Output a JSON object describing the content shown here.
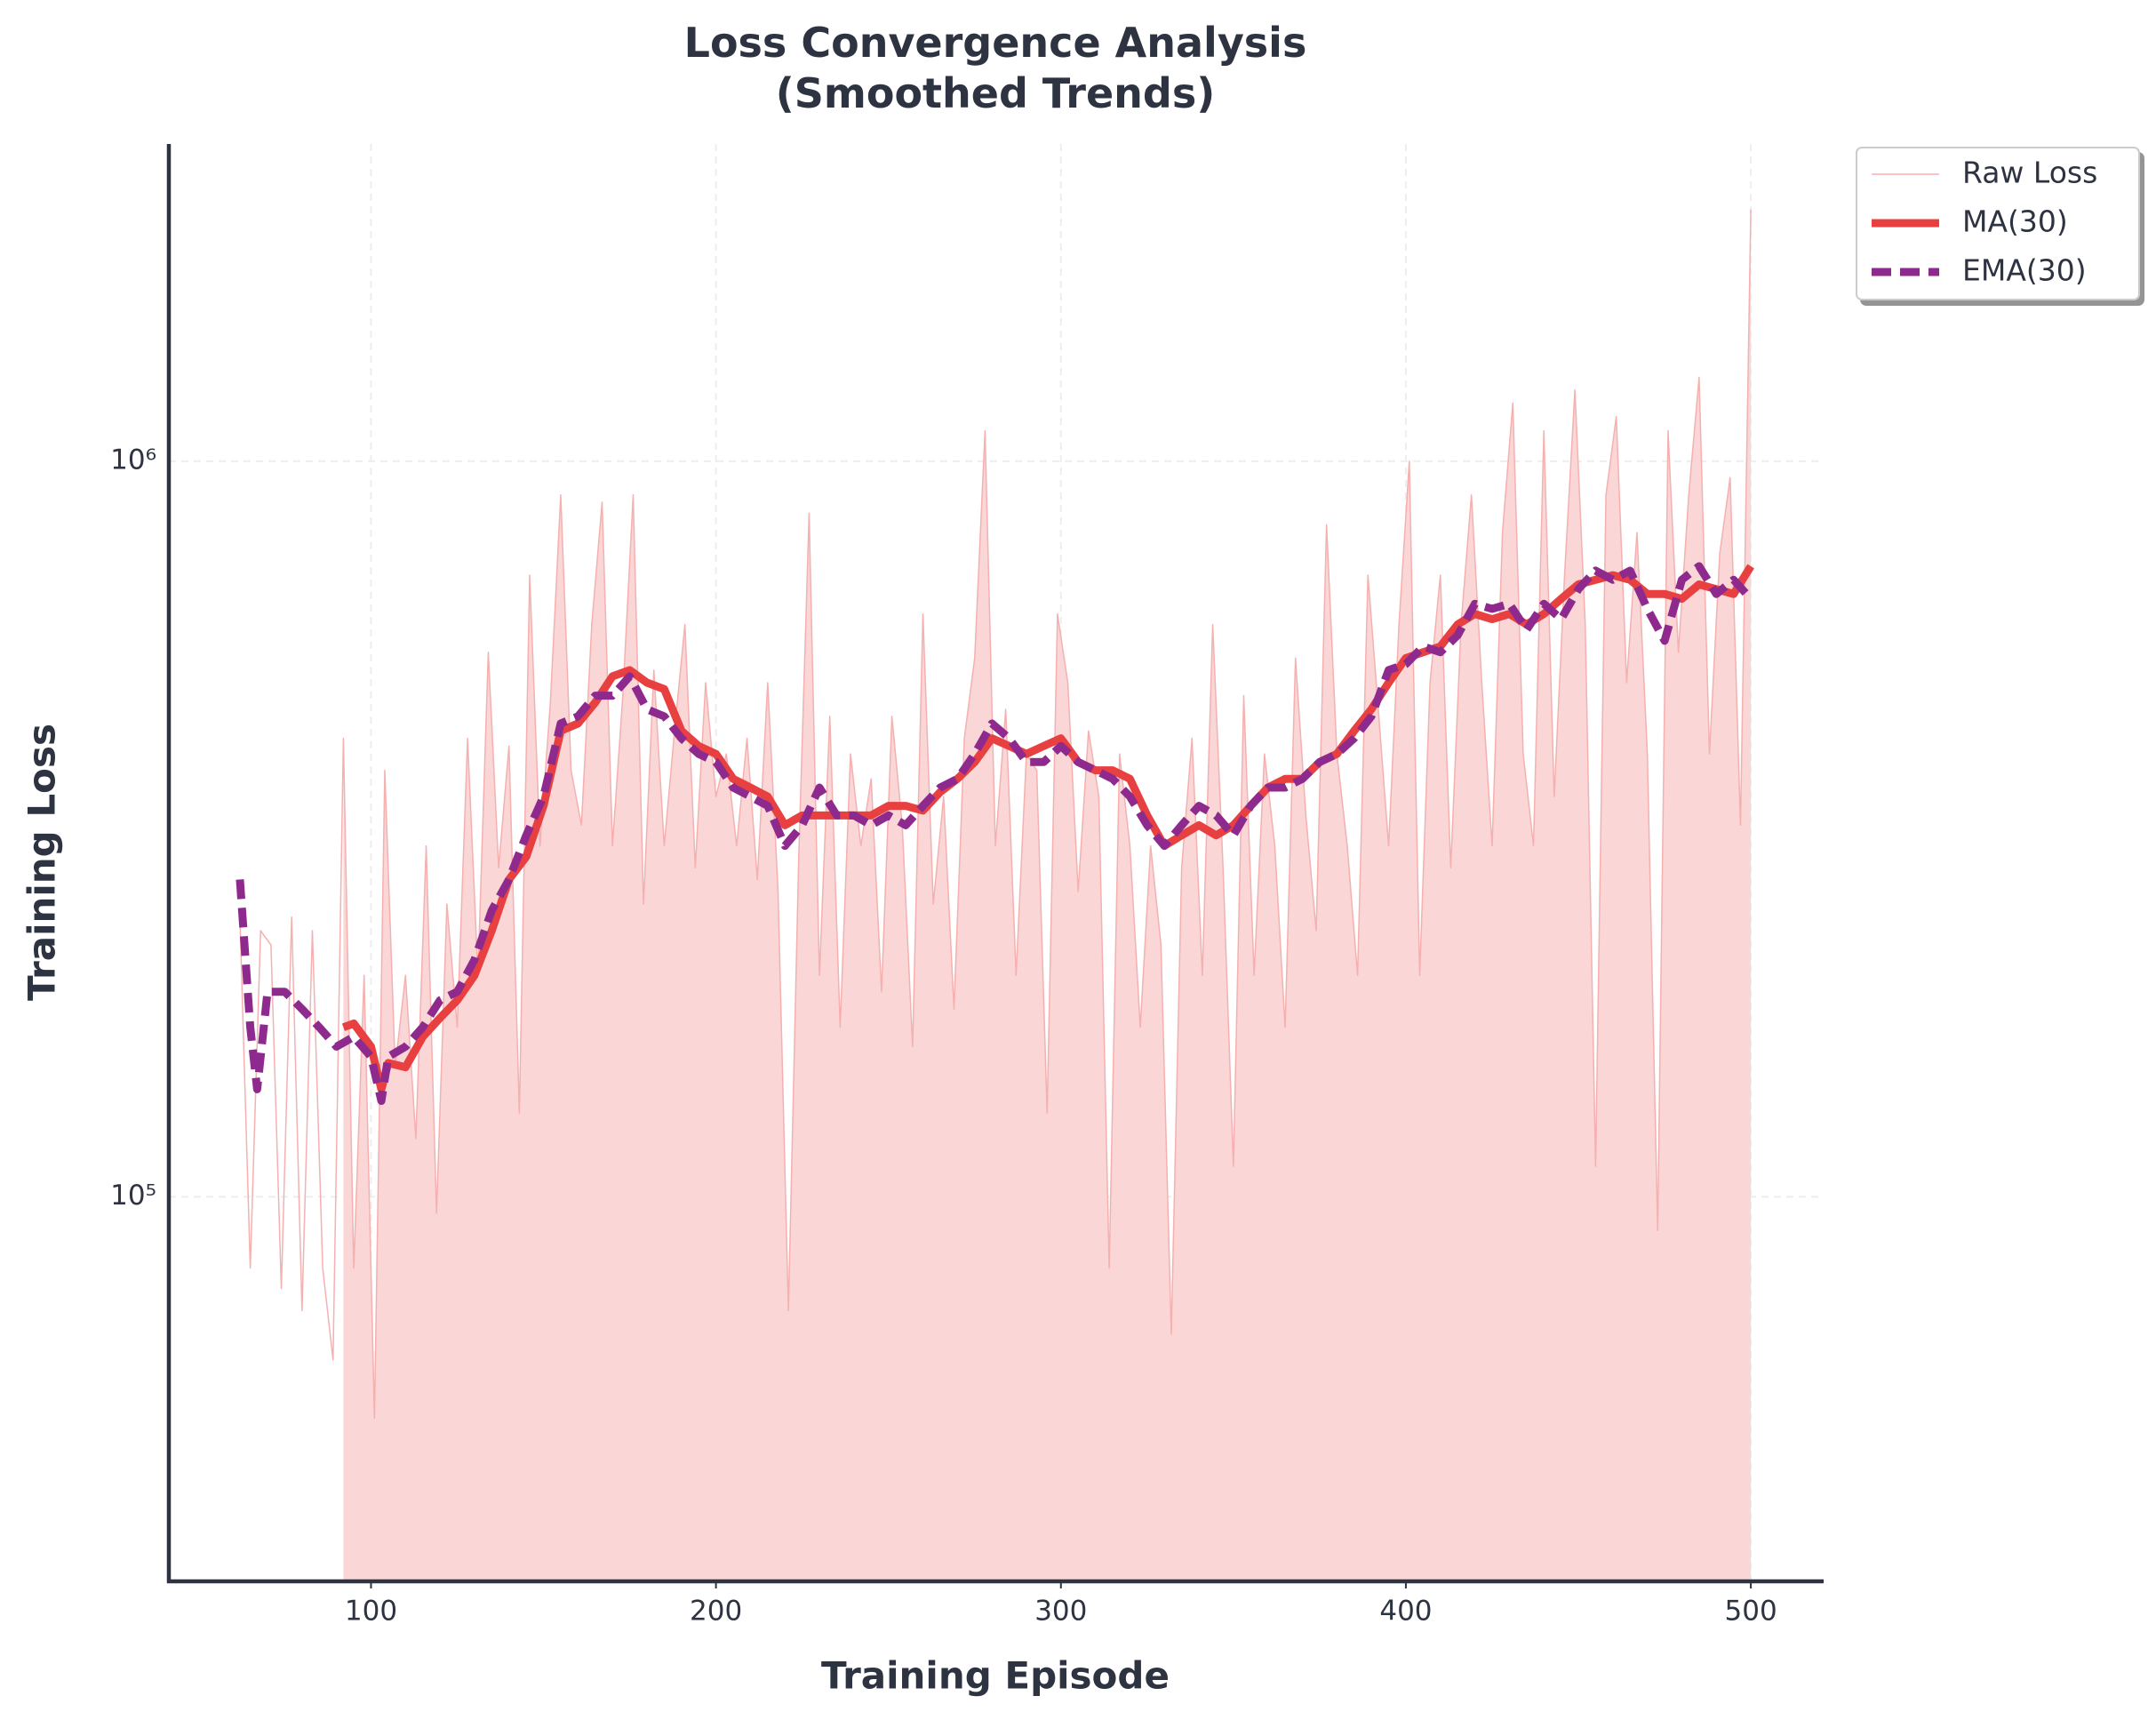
{
  "chart_data": {
    "type": "line",
    "title": "Loss Convergence Analysis\n(Smoothed Trends)",
    "xlabel": "Training Episode",
    "ylabel": "Training Loss",
    "xlim": [
      41.4,
      521.1
    ],
    "xticks": [
      100,
      200,
      300,
      400,
      500
    ],
    "ylim": [
      30000,
      2700000
    ],
    "yscale": "log",
    "yticks": [
      {
        "value": 100000,
        "label": "10⁵"
      },
      {
        "value": 1000000,
        "label": "10⁶"
      }
    ],
    "grid": true,
    "legend": "upper right outside",
    "series": [
      {
        "name": "Raw Loss",
        "color": "#f5b0b0",
        "linestyle": "solid",
        "linewidth": 1.5,
        "fill": "#fad6d6",
        "x": [
          62,
          65,
          68,
          71,
          74,
          77,
          80,
          83,
          86,
          89,
          92,
          95,
          98,
          101,
          104,
          107,
          110,
          113,
          116,
          119,
          122,
          125,
          128,
          131,
          134,
          137,
          140,
          143,
          146,
          149,
          152,
          155,
          158,
          161,
          164,
          167,
          170,
          173,
          176,
          179,
          182,
          185,
          188,
          191,
          194,
          197,
          200,
          203,
          206,
          209,
          212,
          215,
          218,
          221,
          224,
          227,
          230,
          233,
          236,
          239,
          242,
          245,
          248,
          251,
          254,
          257,
          260,
          263,
          266,
          269,
          272,
          275,
          278,
          281,
          284,
          287,
          290,
          293,
          296,
          299,
          302,
          305,
          308,
          311,
          314,
          317,
          320,
          323,
          326,
          329,
          332,
          335,
          338,
          341,
          344,
          347,
          350,
          353,
          356,
          359,
          362,
          365,
          368,
          371,
          374,
          377,
          380,
          383,
          386,
          389,
          392,
          395,
          398,
          401,
          404,
          407,
          410,
          413,
          416,
          419,
          422,
          425,
          428,
          431,
          434,
          437,
          440,
          443,
          446,
          449,
          452,
          455,
          458,
          461,
          464,
          467,
          470,
          473,
          476,
          479,
          482,
          485,
          488,
          491,
          494,
          497,
          500
        ],
        "values": [
          240000,
          80000,
          230000,
          220000,
          75000,
          240000,
          70000,
          230000,
          80000,
          60000,
          420000,
          80000,
          200000,
          50000,
          380000,
          150000,
          200000,
          120000,
          300000,
          95000,
          250000,
          170000,
          420000,
          200000,
          550000,
          280000,
          410000,
          130000,
          700000,
          300000,
          470000,
          900000,
          380000,
          320000,
          600000,
          880000,
          300000,
          480000,
          900000,
          250000,
          520000,
          300000,
          430000,
          600000,
          280000,
          500000,
          350000,
          400000,
          300000,
          420000,
          270000,
          500000,
          260000,
          70000,
          290000,
          850000,
          200000,
          450000,
          170000,
          400000,
          300000,
          370000,
          190000,
          450000,
          320000,
          160000,
          620000,
          250000,
          350000,
          180000,
          420000,
          540000,
          1100000,
          300000,
          460000,
          200000,
          400000,
          380000,
          130000,
          620000,
          500000,
          260000,
          430000,
          350000,
          80000,
          400000,
          300000,
          170000,
          300000,
          220000,
          65000,
          280000,
          420000,
          200000,
          600000,
          280000,
          110000,
          480000,
          200000,
          400000,
          300000,
          170000,
          540000,
          330000,
          230000,
          820000,
          400000,
          300000,
          200000,
          700000,
          460000,
          300000,
          600000,
          1000000,
          200000,
          500000,
          700000,
          280000,
          600000,
          900000,
          500000,
          300000,
          800000,
          1200000,
          400000,
          300000,
          1100000,
          350000,
          700000,
          1250000,
          600000,
          110000,
          900000,
          1150000,
          500000,
          800000,
          400000,
          90000,
          1100000,
          550000,
          900000,
          1300000,
          400000,
          750000,
          950000,
          320000,
          2200000
        ]
      },
      {
        "name": "MA(30)",
        "color": "#e84040",
        "linestyle": "solid",
        "linewidth": 9,
        "x": [
          92,
          95,
          100,
          103,
          105,
          110,
          115,
          120,
          125,
          130,
          135,
          140,
          145,
          150,
          155,
          160,
          165,
          170,
          175,
          180,
          185,
          190,
          195,
          200,
          205,
          210,
          215,
          220,
          225,
          230,
          235,
          240,
          245,
          250,
          255,
          260,
          265,
          270,
          275,
          280,
          285,
          290,
          295,
          300,
          305,
          310,
          315,
          320,
          325,
          330,
          335,
          340,
          345,
          350,
          355,
          360,
          365,
          370,
          375,
          380,
          385,
          390,
          395,
          400,
          405,
          410,
          415,
          420,
          425,
          430,
          435,
          440,
          445,
          450,
          455,
          460,
          465,
          470,
          475,
          480,
          485,
          490,
          495,
          500
        ],
        "values": [
          170000,
          172000,
          160000,
          140000,
          152000,
          150000,
          165000,
          175000,
          185000,
          200000,
          230000,
          270000,
          290000,
          340000,
          430000,
          440000,
          470000,
          510000,
          520000,
          500000,
          490000,
          430000,
          410000,
          400000,
          370000,
          360000,
          350000,
          320000,
          330000,
          330000,
          330000,
          330000,
          330000,
          340000,
          340000,
          335000,
          355000,
          370000,
          390000,
          420000,
          410000,
          400000,
          410000,
          420000,
          390000,
          380000,
          380000,
          370000,
          330000,
          300000,
          310000,
          320000,
          310000,
          320000,
          340000,
          360000,
          370000,
          370000,
          390000,
          400000,
          430000,
          460000,
          500000,
          540000,
          550000,
          560000,
          600000,
          620000,
          610000,
          620000,
          600000,
          620000,
          650000,
          680000,
          690000,
          700000,
          690000,
          660000,
          660000,
          650000,
          680000,
          670000,
          660000,
          720000
        ]
      },
      {
        "name": "EMA(30)",
        "color": "#8e2a8e",
        "linestyle": "dashed",
        "linewidth": 9,
        "x": [
          62,
          65,
          67,
          70,
          75,
          80,
          85,
          90,
          95,
          100,
          103,
          105,
          110,
          115,
          120,
          125,
          130,
          135,
          140,
          145,
          150,
          155,
          160,
          165,
          170,
          175,
          180,
          185,
          190,
          195,
          200,
          205,
          210,
          215,
          220,
          225,
          230,
          235,
          240,
          245,
          250,
          255,
          260,
          265,
          270,
          275,
          280,
          285,
          290,
          295,
          300,
          305,
          310,
          315,
          320,
          325,
          330,
          335,
          340,
          345,
          350,
          355,
          360,
          365,
          370,
          375,
          380,
          385,
          390,
          395,
          400,
          405,
          410,
          415,
          420,
          425,
          430,
          435,
          440,
          445,
          450,
          455,
          460,
          465,
          470,
          475,
          480,
          485,
          490,
          495,
          500
        ],
        "values": [
          270000,
          170000,
          140000,
          190000,
          190000,
          180000,
          170000,
          160000,
          165000,
          155000,
          135000,
          155000,
          160000,
          170000,
          185000,
          190000,
          210000,
          245000,
          270000,
          310000,
          350000,
          440000,
          450000,
          480000,
          480000,
          510000,
          460000,
          450000,
          420000,
          400000,
          390000,
          360000,
          350000,
          340000,
          300000,
          320000,
          360000,
          330000,
          330000,
          320000,
          330000,
          320000,
          340000,
          360000,
          370000,
          400000,
          440000,
          420000,
          390000,
          390000,
          410000,
          390000,
          380000,
          370000,
          350000,
          320000,
          300000,
          320000,
          340000,
          330000,
          310000,
          340000,
          360000,
          360000,
          370000,
          390000,
          400000,
          420000,
          450000,
          520000,
          530000,
          560000,
          550000,
          580000,
          640000,
          630000,
          640000,
          590000,
          640000,
          610000,
          670000,
          710000,
          690000,
          710000,
          630000,
          570000,
          690000,
          720000,
          660000,
          690000,
          650000
        ]
      }
    ]
  }
}
